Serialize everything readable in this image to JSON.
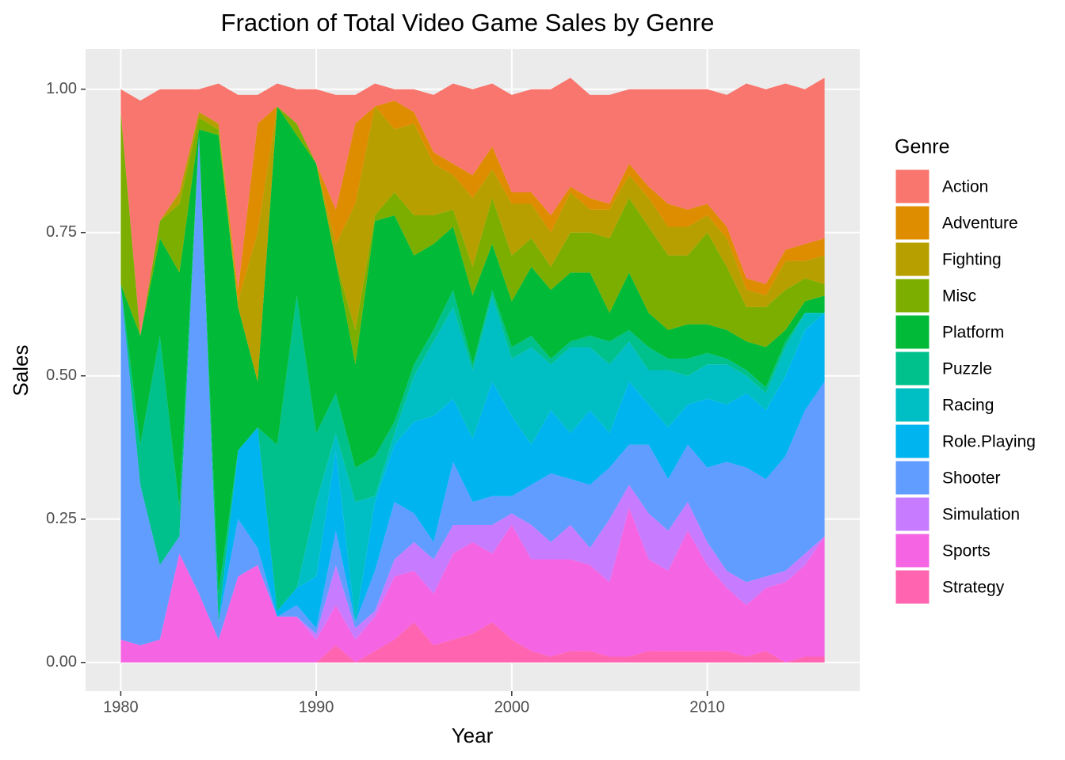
{
  "chart_data": {
    "type": "stacked_area",
    "title": "Fraction of Total Video Game Sales by Genre",
    "x_label": "Year",
    "y_label": "Sales",
    "legend_title": "Genre",
    "x": [
      1980,
      1981,
      1982,
      1983,
      1984,
      1985,
      1986,
      1987,
      1988,
      1989,
      1990,
      1991,
      1992,
      1993,
      1994,
      1995,
      1996,
      1997,
      1998,
      1999,
      2000,
      2001,
      2002,
      2003,
      2004,
      2005,
      2006,
      2007,
      2008,
      2009,
      2010,
      2011,
      2012,
      2013,
      2014,
      2015,
      2016
    ],
    "xlim": [
      1978.2,
      2017.8
    ],
    "xticks": [
      1980,
      1990,
      2000,
      2010
    ],
    "ylim": [
      -0.05,
      1.07
    ],
    "yticks": [
      {
        "value": 0,
        "label": "0.00"
      },
      {
        "value": 0.25,
        "label": "0.25"
      },
      {
        "value": 0.5,
        "label": "0.50"
      },
      {
        "value": 0.75,
        "label": "0.75"
      },
      {
        "value": 1,
        "label": "1.00"
      }
    ],
    "grid": true,
    "legend_position": "right",
    "series": [
      {
        "name": "Action",
        "color": "#F8766D",
        "values": [
          0.04,
          0.41,
          0.23,
          0.18,
          0.04,
          0.07,
          0.34,
          0.05,
          0.04,
          0.06,
          0.13,
          0.2,
          0.05,
          0.04,
          0.02,
          0.04,
          0.1,
          0.14,
          0.15,
          0.11,
          0.17,
          0.18,
          0.22,
          0.19,
          0.18,
          0.19,
          0.13,
          0.17,
          0.2,
          0.21,
          0.2,
          0.23,
          0.34,
          0.34,
          0.29,
          0.27,
          0.28
        ]
      },
      {
        "name": "Adventure",
        "color": "#DE8C00",
        "values": [
          0,
          0,
          0,
          0,
          0,
          0,
          0.02,
          0.19,
          0,
          0,
          0,
          0.06,
          0.14,
          0,
          0.05,
          0.02,
          0.02,
          0.02,
          0.04,
          0.04,
          0.02,
          0.02,
          0.03,
          0.01,
          0.02,
          0.01,
          0.02,
          0.02,
          0.04,
          0.03,
          0.02,
          0.02,
          0.02,
          0.02,
          0.02,
          0.03,
          0.03
        ]
      },
      {
        "name": "Fighting",
        "color": "#B79F00",
        "values": [
          0,
          0,
          0,
          0.02,
          0.01,
          0.01,
          0.01,
          0.26,
          0,
          0,
          0,
          0.03,
          0.22,
          0.19,
          0.11,
          0.16,
          0.09,
          0.06,
          0.12,
          0.05,
          0.09,
          0.06,
          0.06,
          0.07,
          0.04,
          0.05,
          0.04,
          0.05,
          0.05,
          0.05,
          0.03,
          0.05,
          0.03,
          0.02,
          0.05,
          0.03,
          0.05
        ]
      },
      {
        "name": "Misc",
        "color": "#7CAE00",
        "values": [
          0.3,
          0,
          0.03,
          0.12,
          0.02,
          0.01,
          0,
          0,
          0,
          0.02,
          0,
          0,
          0.06,
          0.01,
          0.04,
          0.07,
          0.05,
          0.03,
          0.05,
          0.08,
          0.08,
          0.05,
          0.04,
          0.07,
          0.07,
          0.13,
          0.13,
          0.15,
          0.13,
          0.12,
          0.16,
          0.11,
          0.06,
          0.07,
          0.07,
          0.04,
          0.02
        ]
      },
      {
        "name": "Platform",
        "color": "#00BA38",
        "values": [
          0,
          0.19,
          0.17,
          0.41,
          0.01,
          0.8,
          0.25,
          0.08,
          0.59,
          0.28,
          0.47,
          0.23,
          0.18,
          0.41,
          0.36,
          0.19,
          0.15,
          0.11,
          0.12,
          0.08,
          0.08,
          0.12,
          0.12,
          0.12,
          0.11,
          0.05,
          0.1,
          0.06,
          0.05,
          0.06,
          0.05,
          0.05,
          0.05,
          0.07,
          0.02,
          0.02,
          0.03
        ]
      },
      {
        "name": "Puzzle",
        "color": "#00C08B",
        "values": [
          0,
          0.07,
          0.4,
          0.05,
          0,
          0.05,
          0,
          0,
          0.29,
          0.51,
          0.12,
          0.07,
          0.06,
          0.07,
          0.02,
          0.02,
          0.02,
          0.03,
          0.01,
          0.01,
          0.02,
          0.02,
          0.01,
          0.01,
          0.02,
          0.04,
          0.02,
          0.04,
          0.02,
          0.03,
          0.02,
          0.01,
          0.01,
          0.01,
          0.01,
          0,
          0
        ]
      },
      {
        "name": "Racing",
        "color": "#00BFC4",
        "values": [
          0,
          0,
          0,
          0,
          0,
          0,
          0,
          0,
          0,
          0,
          0.13,
          0.03,
          0.21,
          0.01,
          0.02,
          0.08,
          0.13,
          0.16,
          0.12,
          0.15,
          0.1,
          0.17,
          0.08,
          0.15,
          0.11,
          0.12,
          0.07,
          0.06,
          0.1,
          0.05,
          0.06,
          0.07,
          0.03,
          0.03,
          0.05,
          0.03,
          0
        ]
      },
      {
        "name": "Role.Playing",
        "color": "#00B4F0",
        "values": [
          0,
          0,
          0,
          0,
          0,
          0,
          0.12,
          0.21,
          0.01,
          0.03,
          0.09,
          0.14,
          0,
          0.12,
          0.1,
          0.16,
          0.22,
          0.11,
          0.11,
          0.2,
          0.14,
          0.07,
          0.11,
          0.08,
          0.13,
          0.06,
          0.11,
          0.07,
          0.09,
          0.07,
          0.12,
          0.1,
          0.13,
          0.12,
          0.14,
          0.14,
          0.12
        ]
      },
      {
        "name": "Shooter",
        "color": "#619CFF",
        "values": [
          0.62,
          0.28,
          0.13,
          0.03,
          0.8,
          0.03,
          0.1,
          0.03,
          0,
          0.02,
          0.01,
          0.06,
          0.01,
          0.07,
          0.1,
          0.05,
          0.03,
          0.11,
          0.04,
          0.05,
          0.03,
          0.07,
          0.12,
          0.08,
          0.11,
          0.09,
          0.07,
          0.12,
          0.09,
          0.1,
          0.13,
          0.19,
          0.2,
          0.17,
          0.2,
          0.25,
          0.27
        ]
      },
      {
        "name": "Simulation",
        "color": "#C77CFF",
        "values": [
          0,
          0,
          0,
          0,
          0,
          0,
          0,
          0,
          0,
          0,
          0.01,
          0.07,
          0.02,
          0.01,
          0.03,
          0.05,
          0.06,
          0.05,
          0.03,
          0.05,
          0.02,
          0.06,
          0.03,
          0.06,
          0.03,
          0.11,
          0.04,
          0.08,
          0.07,
          0.05,
          0.04,
          0.03,
          0.04,
          0.02,
          0.02,
          0.02,
          0
        ]
      },
      {
        "name": "Sports",
        "color": "#F564E3",
        "values": [
          0.04,
          0.03,
          0.04,
          0.19,
          0.12,
          0.04,
          0.15,
          0.17,
          0.08,
          0.08,
          0.04,
          0.07,
          0.04,
          0.06,
          0.11,
          0.09,
          0.09,
          0.15,
          0.16,
          0.12,
          0.2,
          0.16,
          0.17,
          0.16,
          0.15,
          0.13,
          0.26,
          0.16,
          0.14,
          0.21,
          0.15,
          0.11,
          0.09,
          0.11,
          0.14,
          0.16,
          0.21
        ]
      },
      {
        "name": "Strategy",
        "color": "#FF64B0",
        "values": [
          0,
          0,
          0,
          0,
          0,
          0,
          0,
          0,
          0,
          0,
          0,
          0.03,
          0,
          0.02,
          0.04,
          0.07,
          0.03,
          0.04,
          0.05,
          0.07,
          0.04,
          0.02,
          0.01,
          0.02,
          0.02,
          0.01,
          0.01,
          0.02,
          0.02,
          0.02,
          0.02,
          0.02,
          0.01,
          0.02,
          0,
          0.01,
          0.01
        ]
      }
    ]
  }
}
